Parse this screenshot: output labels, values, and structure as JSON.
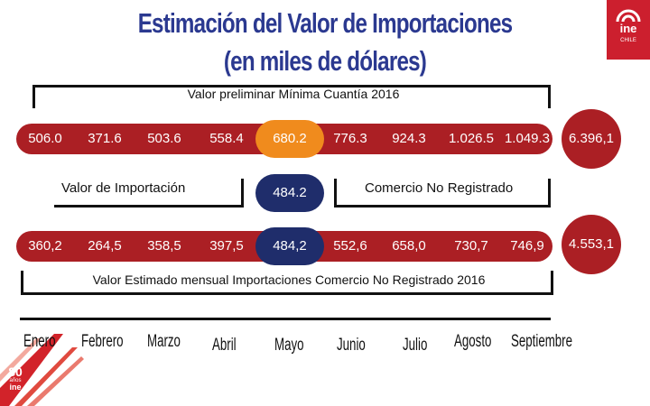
{
  "title": {
    "line1": "Estimación del Valor de Importaciones",
    "line2": "(en miles de dólares)"
  },
  "logo": {
    "brand": "ine",
    "icon": "arc-icon",
    "subtitle": "CHILE"
  },
  "anniversary": {
    "number": "80",
    "word": "años",
    "brand": "ine"
  },
  "top_bracket_label": "Valor preliminar Mínima Cuantía 2016",
  "row1": {
    "values": [
      "506.0",
      "371.6",
      "503.6",
      "558.4",
      "680.2",
      "776.3",
      "924.3",
      "1.026.5",
      "1.049.3"
    ],
    "total": "6.396,1",
    "highlight_index": 4
  },
  "middle": {
    "left_label": "Valor de Importación",
    "center_value": "484.2",
    "right_label": "Comercio No Registrado"
  },
  "row2": {
    "values": [
      "360,2",
      "264,5",
      "358,5",
      "397,5",
      "484,2",
      "552,6",
      "658,0",
      "730,7",
      "746,9"
    ],
    "total": "4.553,1",
    "highlight_index": 4
  },
  "bottom_bracket_label": "Valor Estimado mensual Importaciones Comercio No Registrado 2016",
  "months": [
    "Enero",
    "Febrero",
    "Marzo",
    "Abril",
    "Mayo",
    "Junio",
    "Julio",
    "Agosto",
    "Septiembre"
  ],
  "colors": {
    "title": "#2b3990",
    "row": "#ab1f24",
    "highlight_top": "#f08b1d",
    "highlight_navy": "#1f2d6b",
    "logo": "#cc1f2e"
  }
}
